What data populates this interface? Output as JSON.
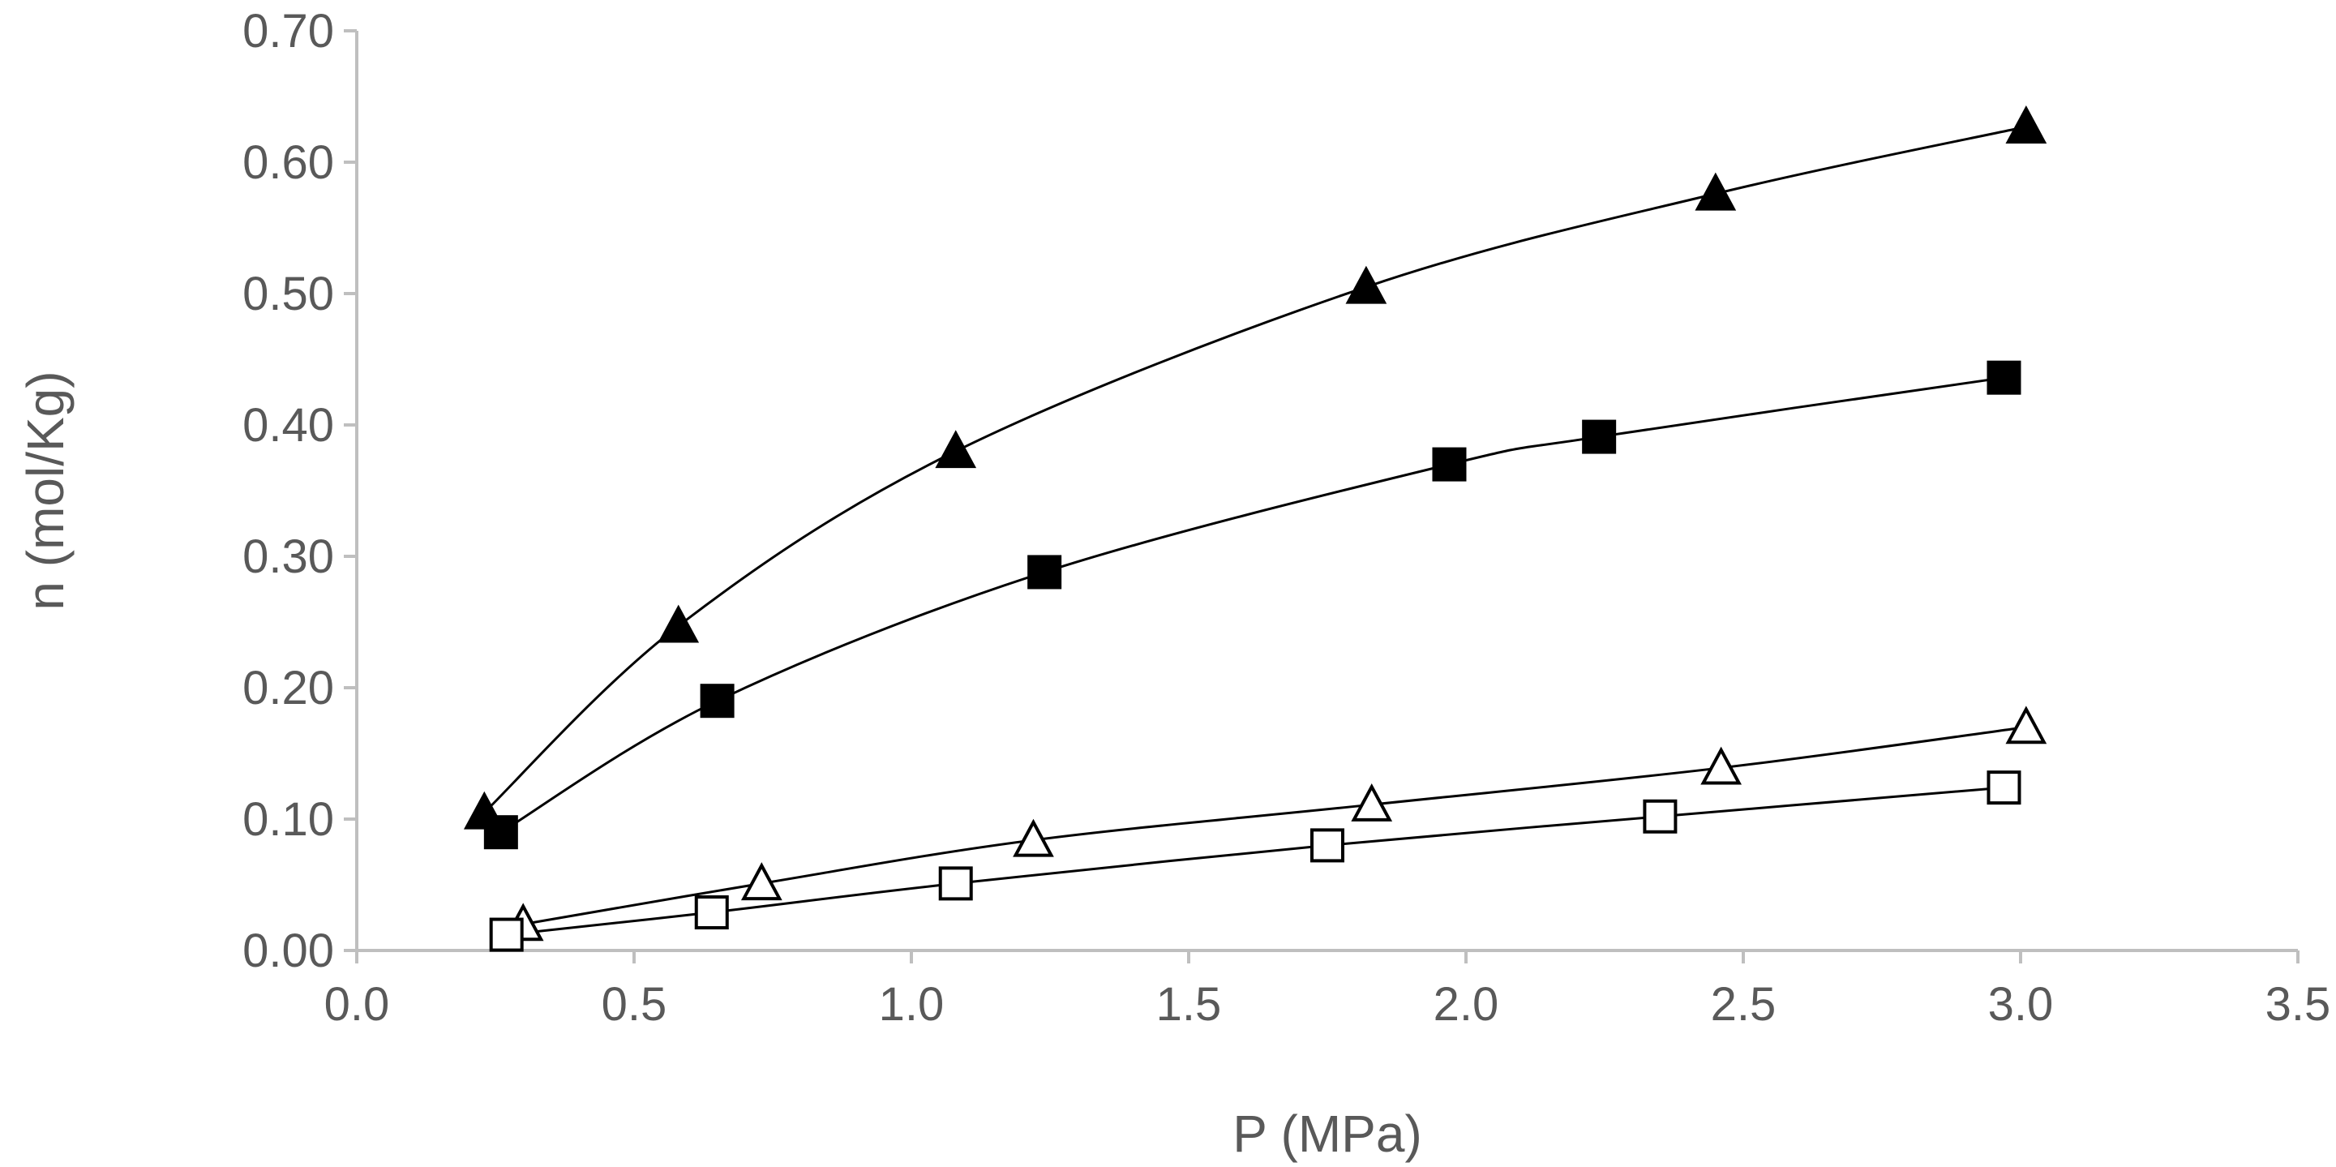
{
  "chart_data": {
    "type": "scatter",
    "title": "",
    "xlabel": "P (MPa)",
    "ylabel": "n (mol/Kg)",
    "xlim": [
      0.0,
      3.5
    ],
    "ylim": [
      0.0,
      0.7
    ],
    "grid": false,
    "legend": "none",
    "x_ticks": [
      "0.0",
      "0.5",
      "1.0",
      "1.5",
      "2.0",
      "2.5",
      "3.0",
      "3.5"
    ],
    "y_ticks": [
      "0.00",
      "0.10",
      "0.20",
      "0.30",
      "0.40",
      "0.50",
      "0.60",
      "0.70"
    ],
    "series": [
      {
        "name": "filled-triangle",
        "marker": "triangle",
        "filled": true,
        "x": [
          0.23,
          0.58,
          1.08,
          1.82,
          2.45,
          3.01
        ],
        "y": [
          0.105,
          0.247,
          0.38,
          0.505,
          0.576,
          0.627
        ]
      },
      {
        "name": "filled-square",
        "marker": "square",
        "filled": true,
        "x": [
          0.26,
          0.65,
          1.24,
          1.97,
          2.24,
          2.97
        ],
        "y": [
          0.09,
          0.19,
          0.288,
          0.37,
          0.391,
          0.436
        ]
      },
      {
        "name": "open-triangle",
        "marker": "triangle",
        "filled": false,
        "x": [
          0.3,
          0.73,
          1.22,
          1.83,
          2.46,
          3.01
        ],
        "y": [
          0.02,
          0.051,
          0.084,
          0.111,
          0.139,
          0.17
        ]
      },
      {
        "name": "open-square",
        "marker": "square",
        "filled": false,
        "x": [
          0.27,
          0.64,
          1.08,
          1.75,
          2.35,
          2.97
        ],
        "y": [
          0.012,
          0.029,
          0.051,
          0.08,
          0.102,
          0.124
        ]
      }
    ]
  }
}
